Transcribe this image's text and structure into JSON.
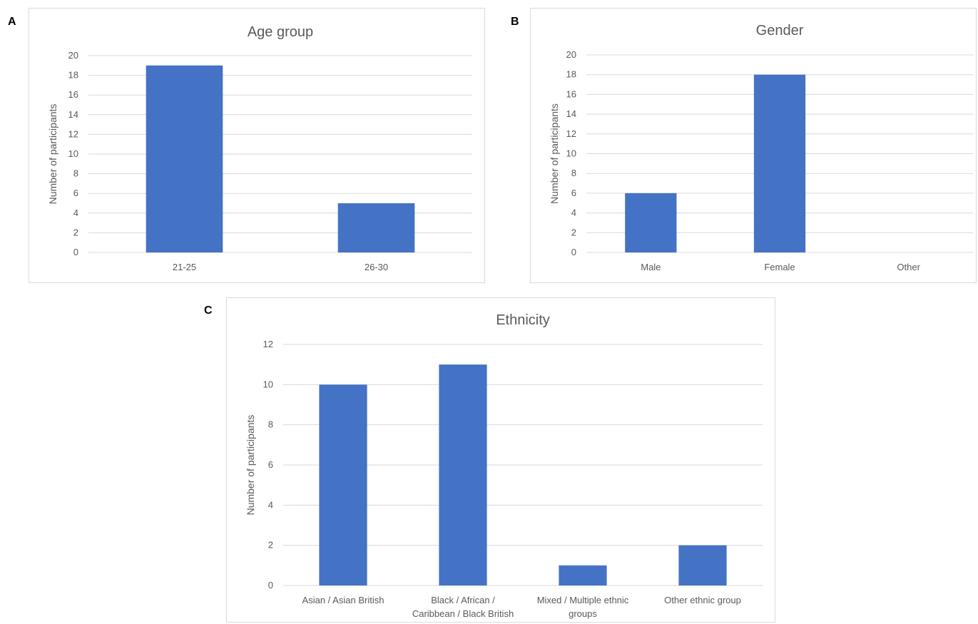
{
  "panels": [
    {
      "label": "A"
    },
    {
      "label": "B"
    },
    {
      "label": "C"
    }
  ],
  "chart_data": [
    {
      "type": "bar",
      "title": "Age group",
      "xlabel": "",
      "ylabel": "Number of participants",
      "categories": [
        "21-25",
        "26-30"
      ],
      "values": [
        19,
        5
      ],
      "ylim": [
        0,
        20
      ],
      "ytick_step": 2,
      "grid": true,
      "color": "#4472c4"
    },
    {
      "type": "bar",
      "title": "Gender",
      "xlabel": "",
      "ylabel": "Number of participants",
      "categories": [
        "Male",
        "Female",
        "Other"
      ],
      "values": [
        6,
        18,
        0
      ],
      "ylim": [
        0,
        20
      ],
      "ytick_step": 2,
      "grid": true,
      "color": "#4472c4"
    },
    {
      "type": "bar",
      "title": "Ethnicity",
      "xlabel": "",
      "ylabel": "Number of participants",
      "categories": [
        [
          "Asian / Asian British"
        ],
        [
          "Black / African /",
          "Caribbean / Black British"
        ],
        [
          "Mixed / Multiple ethnic",
          "groups"
        ],
        [
          "Other ethnic group"
        ]
      ],
      "values": [
        10,
        11,
        1,
        2
      ],
      "ylim": [
        0,
        12
      ],
      "ytick_step": 2,
      "grid": true,
      "color": "#4472c4"
    }
  ]
}
